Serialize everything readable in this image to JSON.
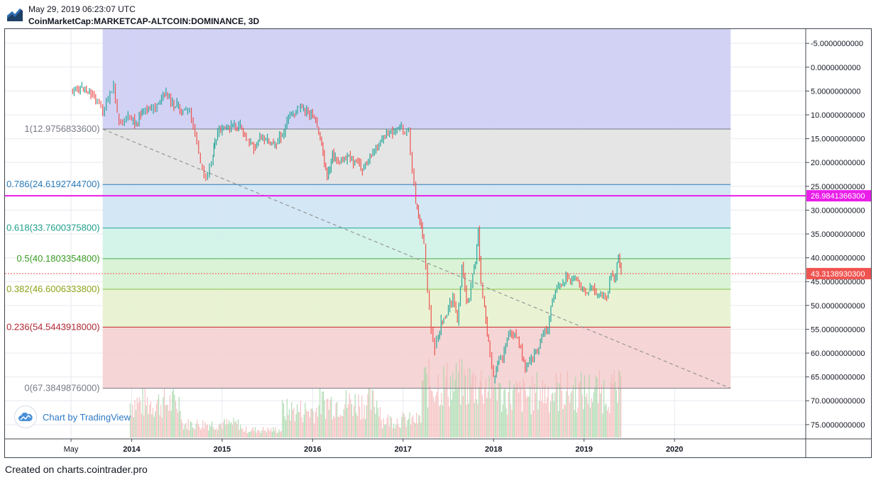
{
  "header": {
    "timestamp": "May 29, 2019 06:23:07 UTC",
    "symbol": "CoinMarketCap:MARKETCAP-ALTCOIN:DOMINANCE, 3D"
  },
  "footer": {
    "text": "Created on charts.cointrader.pro"
  },
  "badge": {
    "text": "Chart by TradingView",
    "icon": "tradingview-cloud-icon"
  },
  "chart_data": {
    "type": "line",
    "title": "",
    "y_axis": {
      "inverted": true,
      "min": -8,
      "max": 78,
      "ticks": [
        "-5.0000000000",
        "0.0000000000",
        "5.0000000000",
        "10.0000000000",
        "15.0000000000",
        "20.0000000000",
        "25.0000000000",
        "30.0000000000",
        "35.0000000000",
        "40.0000000000",
        "45.0000000000",
        "50.0000000000",
        "55.0000000000",
        "60.0000000000",
        "65.0000000000",
        "70.0000000000",
        "75.0000000000"
      ],
      "tick_values": [
        -5,
        0,
        5,
        10,
        15,
        20,
        25,
        30,
        35,
        40,
        45,
        50,
        55,
        60,
        65,
        70,
        75
      ]
    },
    "x_axis": {
      "ticks": [
        "May",
        "2014",
        "2015",
        "2016",
        "2017",
        "2018",
        "2019",
        "2020"
      ],
      "tick_values": [
        2013.33,
        2014.0,
        2015.0,
        2016.0,
        2017.0,
        2018.0,
        2019.0,
        2020.0
      ],
      "min": 2012.6,
      "max": 2021.45
    },
    "fib_levels": [
      {
        "ratio": "1",
        "value": 12.97568336,
        "label": "1(12.9756833600)",
        "label_color": "#787b86",
        "line_color": "#787b86"
      },
      {
        "ratio": "0.786",
        "value": 24.61927447,
        "label": "0.786(24.6192744700)",
        "label_color": "#2b7bb9",
        "line_color": "#2b7bb9"
      },
      {
        "ratio": "0.618",
        "value": 33.76003758,
        "label": "0.618(33.7600375800)",
        "label_color": "#1e9f8a",
        "line_color": "#26a69a"
      },
      {
        "ratio": "0.5",
        "value": 40.18033548,
        "label": "0.5(40.1803354800)",
        "label_color": "#3a9d23",
        "line_color": "#4caf50"
      },
      {
        "ratio": "0.382",
        "value": 46.60063338,
        "label": "0.382(46.6006333800)",
        "label_color": "#8ba31a",
        "line_color": "#8bc34a"
      },
      {
        "ratio": "0.236",
        "value": 54.5443918,
        "label": "0.236(54.5443918000)",
        "label_color": "#b22833",
        "line_color": "#c62828"
      },
      {
        "ratio": "0",
        "value": 67.3849876,
        "label": "0(67.3849876000)",
        "label_color": "#787b86",
        "line_color": "#787b86"
      }
    ],
    "fib_x_range": [
      2013.68,
      2020.62
    ],
    "fib_zones": [
      {
        "from": -8,
        "to": 12.97568336,
        "color": "#cfd0f3"
      },
      {
        "from": 12.97568336,
        "to": 24.61927447,
        "color": "#e4e4e4"
      },
      {
        "from": 24.61927447,
        "to": 33.76003758,
        "color": "#d2e6f3"
      },
      {
        "from": 33.76003758,
        "to": 40.18033548,
        "color": "#d2f2e8"
      },
      {
        "from": 40.18033548,
        "to": 46.60063338,
        "color": "#d8f1d4"
      },
      {
        "from": 46.60063338,
        "to": 54.5443918,
        "color": "#e8f2d2"
      },
      {
        "from": 54.5443918,
        "to": 67.3849876,
        "color": "#f4d3d3"
      }
    ],
    "horizontal_line": {
      "value": 26.98413663,
      "label": "26.9841366300",
      "color": "#e91ee9"
    },
    "current_price": {
      "value": 43.31389303,
      "label": "43.3138930300",
      "color": "#ef5350"
    },
    "trendline": {
      "x": [
        2013.68,
        2020.62
      ],
      "y": [
        12.97568336,
        67.3849876
      ],
      "color": "#888888"
    },
    "series": [
      {
        "color_up": "#26a69a",
        "color_down": "#ef5350",
        "x": [
          2013.33,
          2013.45,
          2013.55,
          2013.62,
          2013.68,
          2013.74,
          2013.8,
          2013.84,
          2013.88,
          2013.92,
          2013.96,
          2014.0,
          2014.05,
          2014.1,
          2014.13,
          2014.17,
          2014.22,
          2014.28,
          2014.33,
          2014.38,
          2014.45,
          2014.5,
          2014.55,
          2014.6,
          2014.64,
          2014.7,
          2014.76,
          2014.82,
          2014.86,
          2014.9,
          2014.92,
          2014.95,
          2015.0,
          2015.05,
          2015.1,
          2015.15,
          2015.2,
          2015.25,
          2015.3,
          2015.35,
          2015.4,
          2015.45,
          2015.5,
          2015.55,
          2015.6,
          2015.65,
          2015.7,
          2015.75,
          2015.8,
          2015.85,
          2015.9,
          2015.95,
          2016.0,
          2016.05,
          2016.1,
          2016.13,
          2016.16,
          2016.19,
          2016.22,
          2016.25,
          2016.3,
          2016.35,
          2016.4,
          2016.45,
          2016.5,
          2016.55,
          2016.6,
          2016.65,
          2016.7,
          2016.75,
          2016.8,
          2016.85,
          2016.9,
          2016.95,
          2016.98,
          2017.02,
          2017.06,
          2017.1,
          2017.14,
          2017.17,
          2017.2,
          2017.23,
          2017.27,
          2017.31,
          2017.35,
          2017.39,
          2017.42,
          2017.45,
          2017.5,
          2017.55,
          2017.6,
          2017.65,
          2017.7,
          2017.73,
          2017.77,
          2017.8,
          2017.83,
          2017.86,
          2017.9,
          2017.93,
          2017.96,
          2018.0,
          2018.03,
          2018.06,
          2018.1,
          2018.15,
          2018.2,
          2018.25,
          2018.3,
          2018.35,
          2018.4,
          2018.45,
          2018.5,
          2018.55,
          2018.6,
          2018.65,
          2018.7,
          2018.75,
          2018.8,
          2018.85,
          2018.9,
          2018.95,
          2019.0,
          2019.05,
          2019.1,
          2019.15,
          2019.2,
          2019.25,
          2019.3,
          2019.35,
          2019.38,
          2019.41
        ],
        "y": [
          5.3,
          4.2,
          5.5,
          6.8,
          9.5,
          7.0,
          4.0,
          9.8,
          11.5,
          10.8,
          10.2,
          11.2,
          11.6,
          10.0,
          9.4,
          8.7,
          9.0,
          7.8,
          6.4,
          5.4,
          7.5,
          8.0,
          9.2,
          9.5,
          8.9,
          13.8,
          20.5,
          23.0,
          20.8,
          18.5,
          16.0,
          13.9,
          13.3,
          12.8,
          12.4,
          12.5,
          12.3,
          14.2,
          15.8,
          16.9,
          15.1,
          14.5,
          15.0,
          15.4,
          15.8,
          14.6,
          12.8,
          10.2,
          9.4,
          8.6,
          8.9,
          9.6,
          10.4,
          12.9,
          16.2,
          20.3,
          23.1,
          21.4,
          17.6,
          19.2,
          20.1,
          19.3,
          18.2,
          20.5,
          19.8,
          21.5,
          20.4,
          18.5,
          16.9,
          15.7,
          14.5,
          13.2,
          13.8,
          12.9,
          12.1,
          14.0,
          13.5,
          21.5,
          28.7,
          31.5,
          32.9,
          37.5,
          47.2,
          55.0,
          59.0,
          56.5,
          53.5,
          52.3,
          51.0,
          47.8,
          53.4,
          41.2,
          49.0,
          48.5,
          43.2,
          40.8,
          33.8,
          45.2,
          50.8,
          56.5,
          60.0,
          65.5,
          63.8,
          60.8,
          61.2,
          57.0,
          55.6,
          56.8,
          58.5,
          63.4,
          62.0,
          60.2,
          58.8,
          56.1,
          55.2,
          48.6,
          46.0,
          45.8,
          43.8,
          45.5,
          44.5,
          46.0,
          46.6,
          46.8,
          46.2,
          48.2,
          47.8,
          48.5,
          43.5,
          44.0,
          39.5,
          43.3
        ]
      }
    ],
    "volume": {
      "color_up": "#a5d6a7",
      "color_down": "#f4b7b7",
      "note_scale": "relative",
      "x_range": [
        2013.98,
        2019.41
      ],
      "segments": [
        {
          "from": 2013.98,
          "to": 2014.55,
          "level": 0.9
        },
        {
          "from": 2014.55,
          "to": 2015.2,
          "level": 0.35
        },
        {
          "from": 2015.2,
          "to": 2015.65,
          "level": 0.2
        },
        {
          "from": 2015.65,
          "to": 2016.05,
          "level": 0.7
        },
        {
          "from": 2016.05,
          "to": 2016.75,
          "level": 0.9
        },
        {
          "from": 2016.75,
          "to": 2017.2,
          "level": 0.45
        },
        {
          "from": 2017.2,
          "to": 2018.05,
          "level": 1.4
        },
        {
          "from": 2018.05,
          "to": 2018.45,
          "level": 1.1
        },
        {
          "from": 2018.45,
          "to": 2019.41,
          "level": 1.2
        }
      ]
    }
  }
}
